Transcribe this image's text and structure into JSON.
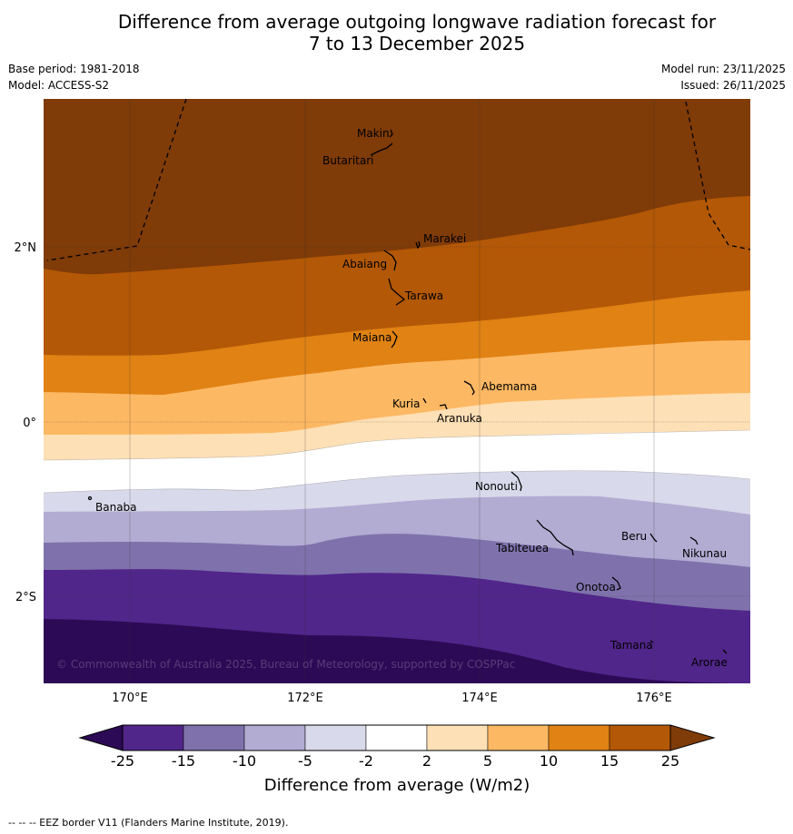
{
  "title": {
    "line1": "Difference from average outgoing longwave radiation forecast for",
    "line2": "7 to 13 December 2025"
  },
  "meta": {
    "base_period": "Base period: 1981-2018",
    "model": "Model: ACCESS-S2",
    "model_run": "Model run: 23/11/2025",
    "issued": "Issued: 26/11/2025"
  },
  "map": {
    "lat_labels": [
      "2°N",
      "0°",
      "2°S"
    ],
    "lon_labels": [
      "170°E",
      "172°E",
      "174°E",
      "176°E"
    ],
    "places": [
      "Makin",
      "Butaritari",
      "Marakei",
      "Abaiang",
      "Tarawa",
      "Maiana",
      "Abemama",
      "Kuria",
      "Aranuka",
      "Nonouti",
      "Banaba",
      "Tabiteuea",
      "Beru",
      "Nikunau",
      "Onotoa",
      "Tamana",
      "Arorae"
    ],
    "copyright": "© Commonwealth of Australia 2025, Bureau of Meteorology, supported by COSPPac"
  },
  "colorbar": {
    "ticks": [
      "-25",
      "-15",
      "-10",
      "-5",
      "-2",
      "2",
      "5",
      "10",
      "15",
      "25"
    ],
    "colors": [
      "#2d0a55",
      "#51268a",
      "#7f72ac",
      "#b2abd2",
      "#d8d9ea",
      "#ffffff",
      "#fee0b6",
      "#fdb863",
      "#e08214",
      "#b35806",
      "#7f3b08"
    ],
    "label": "Difference from average (W/m2)"
  },
  "footnote": "--  --  -- EEZ border V11 (Flanders Marine Institute, 2019)."
}
